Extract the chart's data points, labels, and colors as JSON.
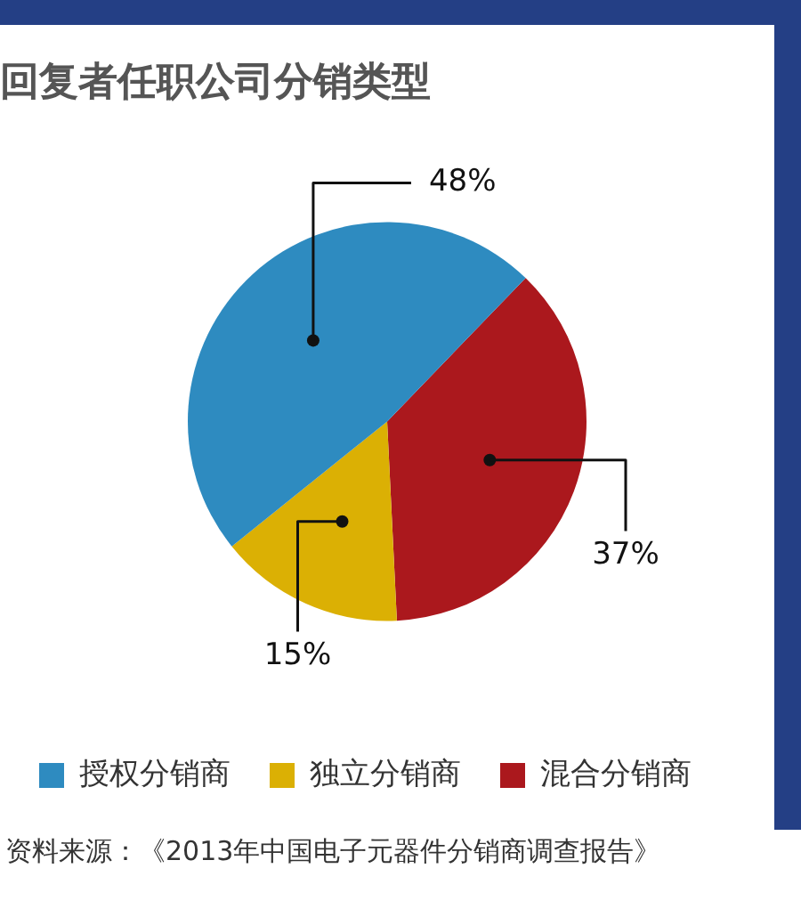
{
  "chart_data": {
    "type": "pie",
    "title": "回复者任职公司分销类型",
    "categories": [
      "授权分销商",
      "独立分销商",
      "混合分销商"
    ],
    "values": [
      48,
      15,
      37
    ],
    "colors": [
      "#2e8bc0",
      "#dbb004",
      "#ab181d"
    ],
    "value_labels": [
      "48%",
      "15%",
      "37%"
    ],
    "legend": "bottom",
    "annotations": [
      "资料来源：《2013年中国电子元器件分销商调查报告》"
    ]
  }
}
